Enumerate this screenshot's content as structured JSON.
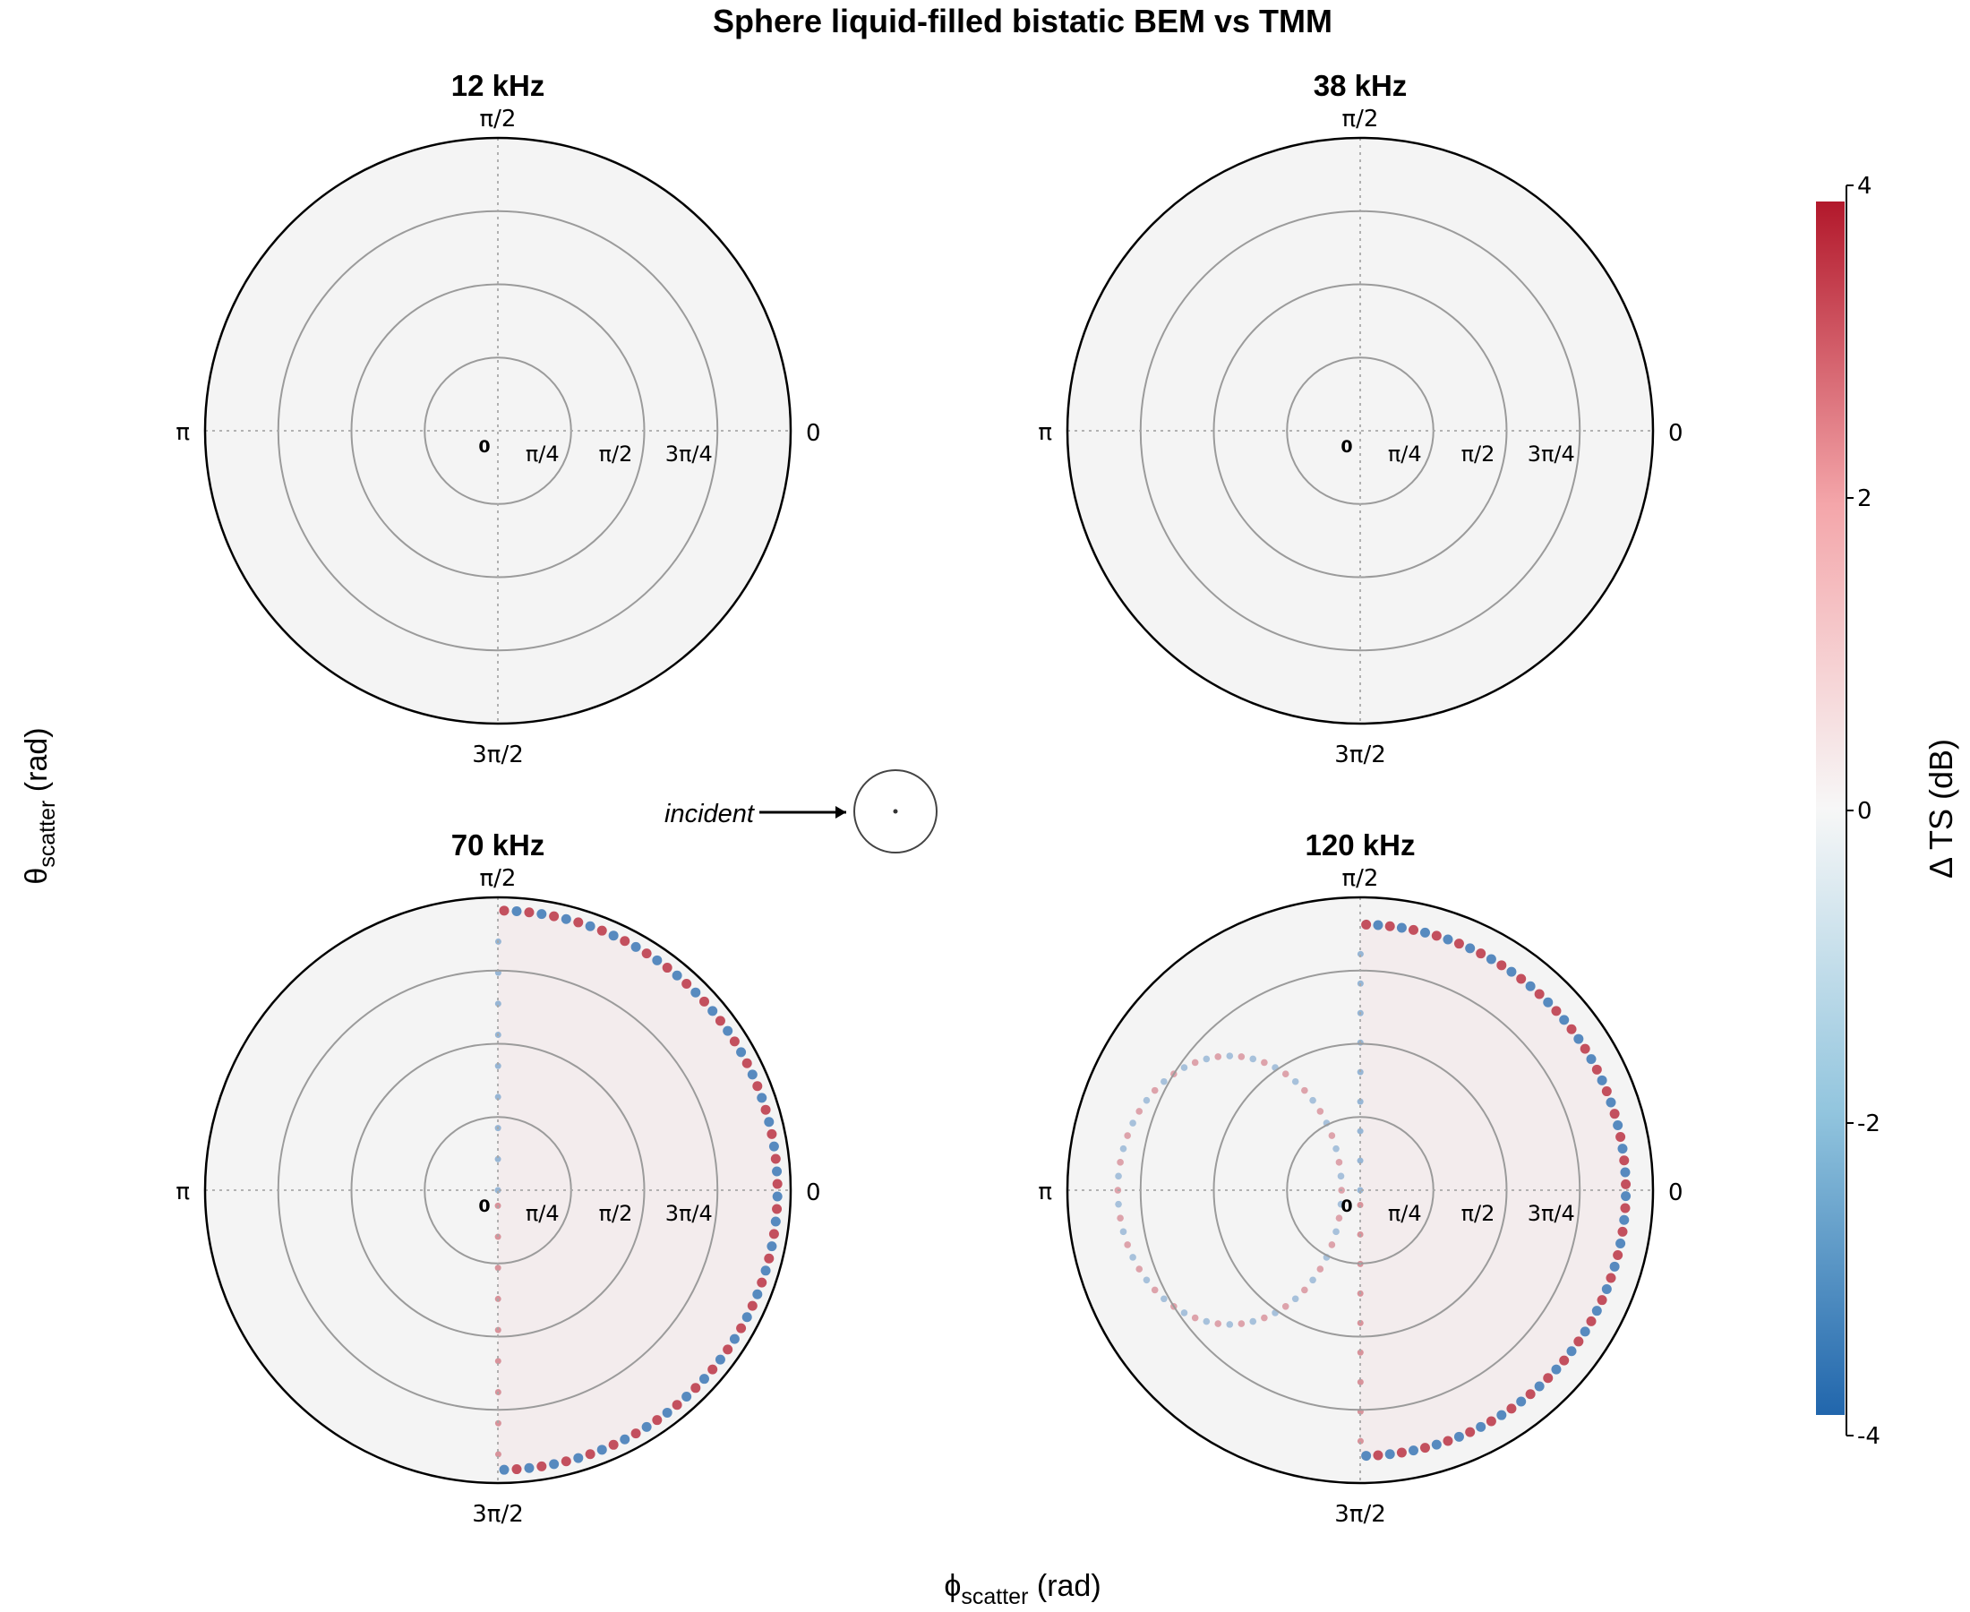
{
  "chart_data": {
    "type": "heatmap",
    "projection": "polar",
    "title": "Sphere liquid-filled bistatic BEM vs TMM",
    "xlabel": "ϕ",
    "xlabel_sub": "scatter",
    "xlabel_unit": " (rad)",
    "ylabel": "θ",
    "ylabel_sub": "scatter",
    "ylabel_unit": " (rad)",
    "angular_tick_labels": [
      "0",
      "π/2",
      "π",
      "3π/2"
    ],
    "radial_tick_labels": [
      "0",
      "π/4",
      "π/2",
      "3π/4"
    ],
    "radial_range": [
      0,
      3.1416
    ],
    "grid": true,
    "annotation": "incident",
    "colorbar": {
      "label": "Δ TS (dB)",
      "ticks": [
        4,
        2,
        0,
        -2,
        -4
      ],
      "tick_labels": [
        "4",
        "2",
        "0",
        "-2",
        "-4"
      ],
      "range": [
        -4,
        4
      ],
      "colors": {
        "low": "#2166ac",
        "mid": "#f7f7f7",
        "high": "#b2182b"
      }
    },
    "panels": [
      {
        "title": "12 kHz",
        "features": []
      },
      {
        "title": "38 kHz",
        "features": []
      },
      {
        "title": "70 kHz",
        "features": [
          {
            "kind": "arc",
            "phi_range": [
              -1.5708,
              1.5708
            ],
            "theta_max": 3.0,
            "value": 0.3,
            "edge_values": [
              -3,
              3
            ]
          }
        ]
      },
      {
        "title": "120 kHz",
        "features": [
          {
            "kind": "arc",
            "phi_range": [
              -1.5708,
              1.5708
            ],
            "theta_max": 2.85,
            "value": 0.3,
            "edge_values": [
              -3,
              3
            ]
          },
          {
            "kind": "ring",
            "phi_center": 3.1416,
            "theta_range": [
              0.2,
              2.6
            ],
            "value": -1.5
          }
        ]
      }
    ]
  }
}
